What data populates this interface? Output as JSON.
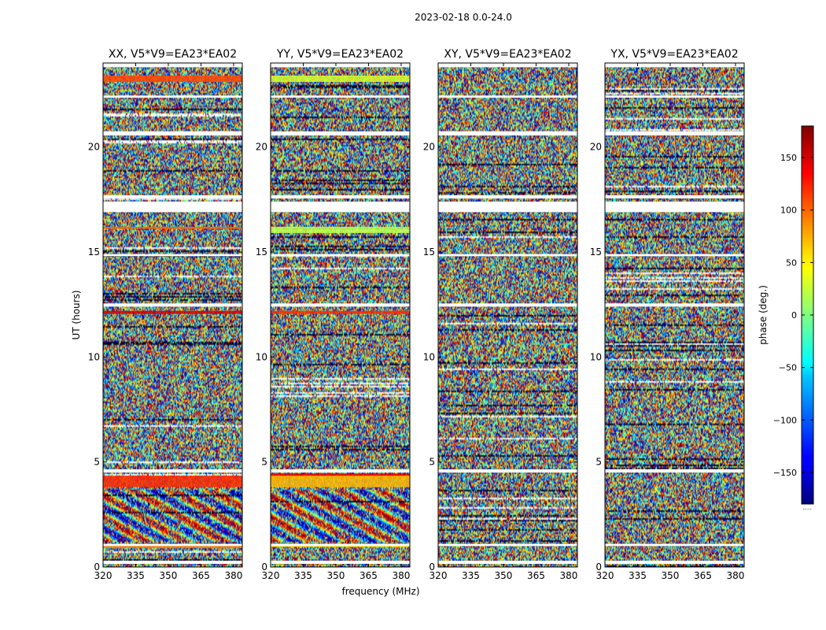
{
  "chart_data": {
    "type": "heatmap",
    "suptitle": "2023-02-18 0.0-24.0",
    "ylabel": "UT (hours)",
    "xlabel": "frequency (MHz)",
    "colorbar_label": "phase (deg.)",
    "colorbar_ticks": [
      "150",
      "100",
      "50",
      "0",
      "−50",
      "−100",
      "−150"
    ],
    "colorbar_tick_values": [
      150,
      100,
      50,
      0,
      -50,
      -100,
      -150
    ],
    "colorbar_range": [
      -180,
      180
    ],
    "colorbar_footer": ".....",
    "xlim": [
      320,
      384
    ],
    "ylim": [
      0,
      24
    ],
    "x_ticks": [
      "320",
      "335",
      "350",
      "365",
      "380"
    ],
    "x_tick_values": [
      320,
      335,
      350,
      365,
      380
    ],
    "y_ticks": [
      "0",
      "5",
      "10",
      "15",
      "20"
    ],
    "y_tick_values": [
      0,
      5,
      10,
      15,
      20
    ],
    "panels": [
      {
        "title": "XX, V5*V9=EA23*EA02",
        "pol": "XX"
      },
      {
        "title": "YY, V5*V9=EA23*EA02",
        "pol": "YY"
      },
      {
        "title": "XY, V5*V9=EA23*EA02",
        "pol": "XY"
      },
      {
        "title": "YX, V5*V9=EA23*EA02",
        "pol": "YX"
      }
    ],
    "flagged_ut_ranges": [
      [
        0.15,
        0.3
      ],
      [
        1.0,
        1.1
      ],
      [
        4.5,
        4.65
      ],
      [
        12.4,
        12.55
      ],
      [
        14.8,
        14.9
      ],
      [
        16.9,
        17.4
      ],
      [
        17.55,
        17.7
      ],
      [
        20.55,
        20.75
      ],
      [
        22.35,
        22.45
      ],
      [
        23.8,
        24.0
      ]
    ],
    "coherent_bands": [
      {
        "pol": "XX",
        "ut": [
          23.1,
          23.4
        ],
        "phase": 110
      },
      {
        "pol": "XX",
        "ut": [
          20.55,
          20.65
        ],
        "phase": 120
      },
      {
        "pol": "XX",
        "ut": [
          16.1,
          16.2
        ],
        "phase": 100
      },
      {
        "pol": "XX",
        "ut": [
          12.05,
          12.2
        ],
        "phase": 150
      },
      {
        "pol": "XX",
        "ut": [
          3.8,
          4.35
        ],
        "phase": 120
      },
      {
        "pol": "XX",
        "ut": [
          0.9,
          1.05
        ],
        "phase": 90
      },
      {
        "pol": "YY",
        "ut": [
          23.1,
          23.4
        ],
        "phase": 30
      },
      {
        "pol": "YY",
        "ut": [
          20.55,
          20.65
        ],
        "phase": 60
      },
      {
        "pol": "YY",
        "ut": [
          15.9,
          16.2
        ],
        "phase": 20
      },
      {
        "pol": "YY",
        "ut": [
          12.05,
          12.2
        ],
        "phase": 120
      },
      {
        "pol": "YY",
        "ut": [
          4.3,
          4.45
        ],
        "phase": 140
      },
      {
        "pol": "YY",
        "ut": [
          3.8,
          4.35
        ],
        "phase": 70
      },
      {
        "pol": "YY",
        "ut": [
          0.95,
          1.1
        ],
        "phase": 55
      }
    ]
  },
  "colors": {
    "flagged": "#ffffff",
    "axes": "#000000"
  }
}
